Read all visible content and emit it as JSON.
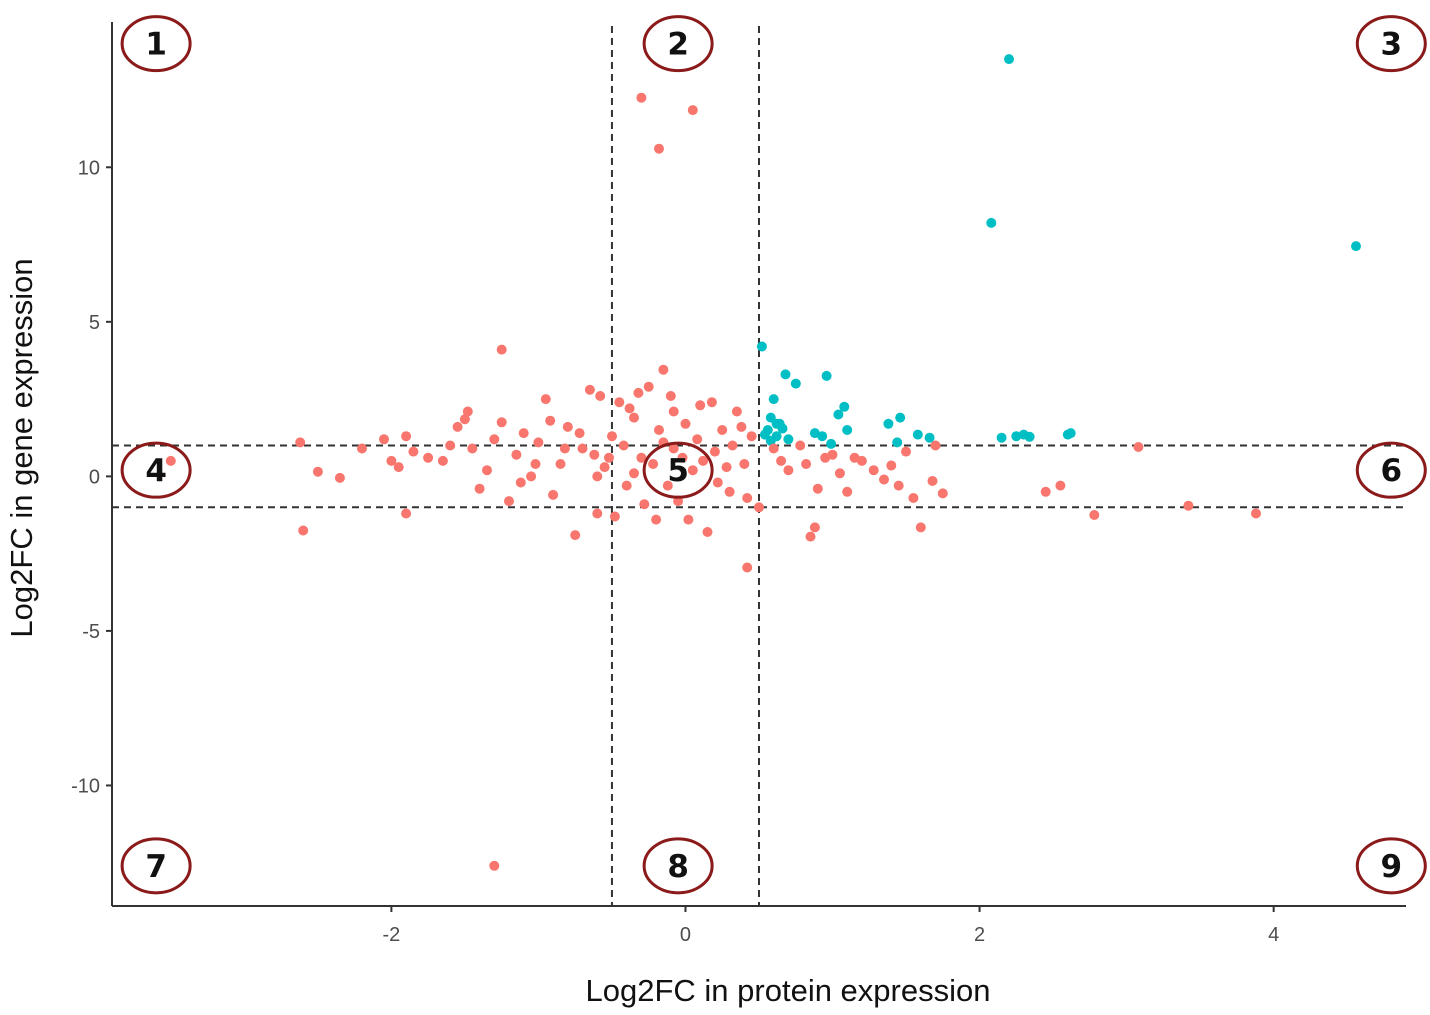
{
  "chart_data": {
    "type": "scatter",
    "title": "",
    "xlabel": "Log2FC in protein expression",
    "ylabel": "Log2FC in gene expression",
    "xlim": [
      -3.9,
      4.9
    ],
    "ylim": [
      -13.9,
      14.7
    ],
    "x_ticks": [
      -2,
      0,
      2,
      4
    ],
    "y_ticks": [
      -10,
      -5,
      0,
      5,
      10
    ],
    "x_tick_labels": [
      "-2",
      "0",
      "2",
      "4"
    ],
    "y_tick_labels": [
      "-10",
      "-5",
      "0",
      "5",
      "10"
    ],
    "grid": false,
    "legend": "none",
    "thresholds": {
      "x": [
        -0.5,
        0.5
      ],
      "y": [
        -1,
        1
      ]
    },
    "region_labels": [
      {
        "label": "1",
        "x": -3.6,
        "y": 14.0
      },
      {
        "label": "2",
        "x": -0.05,
        "y": 14.0
      },
      {
        "label": "3",
        "x": 4.8,
        "y": 14.0
      },
      {
        "label": "4",
        "x": -3.6,
        "y": 0.2
      },
      {
        "label": "5",
        "x": -0.05,
        "y": 0.2
      },
      {
        "label": "6",
        "x": 4.8,
        "y": 0.2
      },
      {
        "label": "7",
        "x": -3.6,
        "y": -12.6
      },
      {
        "label": "8",
        "x": -0.05,
        "y": -12.6
      },
      {
        "label": "9",
        "x": 4.8,
        "y": -12.6
      }
    ],
    "colors": {
      "coral": "#f8766d",
      "teal": "#00bfc4",
      "ring": "#8b1a1a",
      "axis": "#333333"
    },
    "series": [
      {
        "color": "#00bfc4",
        "points": [
          [
            2.2,
            13.5
          ],
          [
            2.08,
            8.2
          ],
          [
            4.56,
            7.45
          ],
          [
            0.52,
            4.2
          ],
          [
            0.68,
            3.3
          ],
          [
            0.96,
            3.25
          ],
          [
            0.75,
            3.0
          ],
          [
            0.6,
            2.5
          ],
          [
            1.08,
            2.25
          ],
          [
            1.04,
            2.0
          ],
          [
            0.58,
            1.9
          ],
          [
            0.62,
            1.7
          ],
          [
            1.46,
            1.9
          ],
          [
            1.38,
            1.7
          ],
          [
            1.1,
            1.5
          ],
          [
            0.88,
            1.4
          ],
          [
            0.93,
            1.3
          ],
          [
            1.58,
            1.35
          ],
          [
            1.66,
            1.25
          ],
          [
            1.44,
            1.1
          ],
          [
            2.15,
            1.25
          ],
          [
            2.25,
            1.3
          ],
          [
            2.3,
            1.35
          ],
          [
            2.34,
            1.28
          ],
          [
            2.6,
            1.35
          ],
          [
            2.62,
            1.4
          ],
          [
            0.56,
            1.5
          ],
          [
            0.62,
            1.3
          ],
          [
            0.66,
            1.55
          ],
          [
            0.58,
            1.15
          ],
          [
            0.7,
            1.2
          ],
          [
            0.54,
            1.35
          ],
          [
            0.99,
            1.05
          ],
          [
            0.64,
            1.7
          ]
        ]
      },
      {
        "color": "#f8766d",
        "points": [
          [
            -0.3,
            12.25
          ],
          [
            0.05,
            11.85
          ],
          [
            -0.18,
            10.6
          ],
          [
            -1.25,
            4.1
          ],
          [
            -0.15,
            3.45
          ],
          [
            3.08,
            0.95
          ],
          [
            2.45,
            -0.5
          ],
          [
            2.55,
            -0.3
          ],
          [
            2.78,
            -1.25
          ],
          [
            3.42,
            -0.95
          ],
          [
            3.88,
            -1.2
          ],
          [
            1.6,
            -1.65
          ],
          [
            0.42,
            -2.95
          ],
          [
            0.88,
            -1.65
          ],
          [
            0.85,
            -1.95
          ],
          [
            -1.3,
            -12.6
          ],
          [
            -3.5,
            0.5
          ],
          [
            -2.62,
            1.1
          ],
          [
            -2.6,
            -1.75
          ],
          [
            -2.5,
            0.15
          ],
          [
            -2.35,
            -0.05
          ],
          [
            -2.2,
            0.9
          ],
          [
            -2.05,
            1.2
          ],
          [
            -2.0,
            0.5
          ],
          [
            -1.95,
            0.3
          ],
          [
            -1.9,
            1.3
          ],
          [
            -1.9,
            -1.2
          ],
          [
            -1.85,
            0.8
          ],
          [
            -1.75,
            0.6
          ],
          [
            -1.65,
            0.5
          ],
          [
            -1.6,
            1.0
          ],
          [
            -1.55,
            1.6
          ],
          [
            -1.5,
            1.85
          ],
          [
            -1.48,
            2.1
          ],
          [
            -1.45,
            0.9
          ],
          [
            -1.4,
            -0.4
          ],
          [
            -1.35,
            0.2
          ],
          [
            -1.3,
            1.2
          ],
          [
            -1.25,
            1.75
          ],
          [
            -1.2,
            -0.8
          ],
          [
            -1.15,
            0.7
          ],
          [
            -1.1,
            1.4
          ],
          [
            -1.05,
            0.0
          ],
          [
            -1.0,
            1.1
          ],
          [
            -0.95,
            2.5
          ],
          [
            -0.9,
            -0.6
          ],
          [
            -0.85,
            0.4
          ],
          [
            -0.8,
            1.6
          ],
          [
            -0.75,
            -1.9
          ],
          [
            -0.7,
            0.9
          ],
          [
            -0.65,
            2.8
          ],
          [
            -0.6,
            -1.2
          ],
          [
            -0.55,
            0.3
          ],
          [
            -0.5,
            1.3
          ],
          [
            -0.45,
            2.4
          ],
          [
            -0.4,
            -0.3
          ],
          [
            -0.35,
            1.9
          ],
          [
            -0.3,
            0.6
          ],
          [
            -0.25,
            2.9
          ],
          [
            -0.2,
            -1.4
          ],
          [
            -0.15,
            1.1
          ],
          [
            -0.1,
            2.6
          ],
          [
            -0.05,
            -0.8
          ],
          [
            0.0,
            1.7
          ],
          [
            0.05,
            0.2
          ],
          [
            0.1,
            2.3
          ],
          [
            0.15,
            -1.8
          ],
          [
            0.2,
            0.8
          ],
          [
            0.25,
            1.5
          ],
          [
            0.3,
            -0.5
          ],
          [
            0.35,
            2.1
          ],
          [
            0.4,
            0.4
          ],
          [
            0.45,
            1.3
          ],
          [
            0.5,
            -1.0
          ],
          [
            0.6,
            0.9
          ],
          [
            0.65,
            0.5
          ],
          [
            0.7,
            0.2
          ],
          [
            0.78,
            1.0
          ],
          [
            0.82,
            0.4
          ],
          [
            0.9,
            -0.4
          ],
          [
            0.95,
            0.6
          ],
          [
            1.0,
            0.7
          ],
          [
            1.05,
            0.1
          ],
          [
            1.1,
            -0.5
          ],
          [
            1.15,
            0.6
          ],
          [
            1.2,
            0.5
          ],
          [
            1.28,
            0.2
          ],
          [
            1.35,
            -0.1
          ],
          [
            1.4,
            0.35
          ],
          [
            1.45,
            -0.3
          ],
          [
            1.5,
            0.8
          ],
          [
            1.55,
            -0.7
          ],
          [
            1.68,
            -0.15
          ],
          [
            1.75,
            -0.55
          ],
          [
            1.7,
            1.0
          ],
          [
            -0.6,
            0.0
          ],
          [
            -0.62,
            0.7
          ],
          [
            -0.42,
            1.0
          ],
          [
            -0.35,
            0.1
          ],
          [
            -0.28,
            -0.9
          ],
          [
            -0.22,
            0.4
          ],
          [
            -0.12,
            -0.3
          ],
          [
            -0.08,
            0.9
          ],
          [
            0.02,
            -1.4
          ],
          [
            0.12,
            0.5
          ],
          [
            0.22,
            -0.2
          ],
          [
            0.32,
            1.0
          ],
          [
            0.42,
            -0.7
          ],
          [
            -0.48,
            -1.3
          ],
          [
            -0.52,
            0.6
          ],
          [
            -0.38,
            2.2
          ],
          [
            -0.18,
            1.5
          ],
          [
            0.08,
            1.2
          ],
          [
            0.28,
            0.3
          ],
          [
            0.38,
            1.6
          ],
          [
            -0.72,
            1.4
          ],
          [
            -0.82,
            0.9
          ],
          [
            -0.92,
            1.8
          ],
          [
            -1.02,
            0.4
          ],
          [
            -1.12,
            -0.2
          ],
          [
            -0.58,
            2.6
          ],
          [
            -0.32,
            2.7
          ],
          [
            -0.08,
            2.1
          ],
          [
            0.18,
            2.4
          ],
          [
            -0.02,
            0.6
          ]
        ]
      }
    ]
  }
}
